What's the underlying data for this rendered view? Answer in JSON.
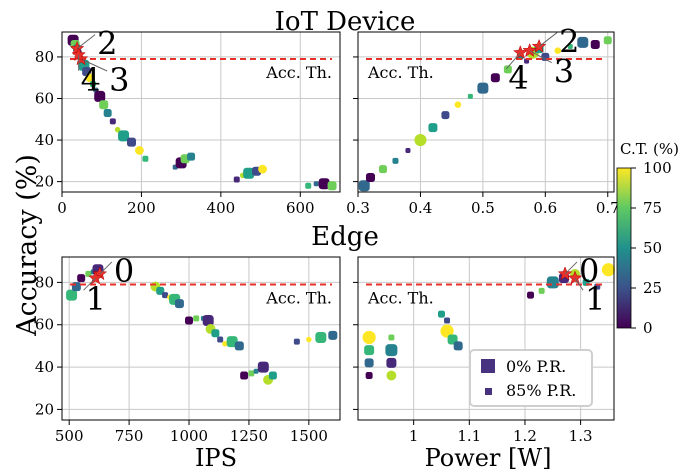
{
  "figure": {
    "shared_ylabel": "Accuracy (%)",
    "threshold_label": "Acc. Th.",
    "threshold_value": 79,
    "colorbar": {
      "label": "C.T. (%)",
      "ticks": [
        0,
        25,
        50,
        75,
        100
      ],
      "range": [
        0,
        100
      ],
      "colormap": "viridis"
    },
    "legend": {
      "items": [
        {
          "label": "0% P.R.",
          "marker": "large-square"
        },
        {
          "label": "85% P.R.",
          "marker": "small-square"
        }
      ]
    },
    "colors": {
      "threshold": "#e8302a",
      "star": "#e8302a",
      "grid": "#c8c8c8",
      "dark": "#440154",
      "bright": "#fde725"
    }
  },
  "chart_data": [
    {
      "type": "scatter",
      "title": "IoT Device",
      "xlabel": "",
      "ylabel": "Accuracy (%)",
      "xlim": [
        0,
        700
      ],
      "ylim": [
        15,
        92
      ],
      "xticks": [
        0,
        200,
        400,
        600
      ],
      "yticks": [
        20,
        40,
        60,
        80
      ],
      "threshold_label_pos": "right",
      "series": [
        {
          "values": [
            [
              28,
              88
            ],
            [
              33,
              86
            ],
            [
              38,
              84
            ],
            [
              42,
              82
            ],
            [
              48,
              79
            ],
            [
              55,
              76
            ],
            [
              62,
              73
            ],
            [
              70,
              70
            ],
            [
              78,
              67
            ],
            [
              85,
              64
            ],
            [
              95,
              61
            ],
            [
              105,
              57
            ],
            [
              115,
              53
            ],
            [
              128,
              49
            ],
            [
              140,
              45
            ],
            [
              155,
              42
            ],
            [
              175,
              39
            ],
            [
              195,
              35
            ],
            [
              210,
              31
            ],
            [
              285,
              27
            ],
            [
              300,
              29
            ],
            [
              310,
              31
            ],
            [
              325,
              32
            ],
            [
              440,
              21
            ],
            [
              455,
              23
            ],
            [
              470,
              24
            ],
            [
              490,
              25
            ],
            [
              505,
              26
            ],
            [
              620,
              18
            ],
            [
              640,
              19
            ],
            [
              660,
              19
            ],
            [
              680,
              18
            ]
          ]
        }
      ],
      "stars": [
        {
          "x": 38,
          "y": 84,
          "label": "2"
        },
        {
          "x": 48,
          "y": 79,
          "label": "3"
        },
        {
          "x": 42,
          "y": 81,
          "label": "4"
        }
      ]
    },
    {
      "type": "scatter",
      "title": "IoT Device",
      "xlabel": "",
      "ylabel": "",
      "xlim": [
        0.3,
        0.71
      ],
      "ylim": [
        15,
        92
      ],
      "xticks": [
        0.3,
        0.4,
        0.5,
        0.6,
        0.7
      ],
      "yticks": [
        20,
        40,
        60,
        80
      ],
      "threshold_label_pos": "left",
      "series": [
        {
          "values": [
            [
              0.31,
              18
            ],
            [
              0.32,
              22
            ],
            [
              0.34,
              26
            ],
            [
              0.36,
              30
            ],
            [
              0.38,
              35
            ],
            [
              0.4,
              40
            ],
            [
              0.42,
              46
            ],
            [
              0.44,
              52
            ],
            [
              0.46,
              57
            ],
            [
              0.48,
              61
            ],
            [
              0.5,
              65
            ],
            [
              0.52,
              70
            ],
            [
              0.54,
              74
            ],
            [
              0.56,
              80
            ],
            [
              0.57,
              78
            ],
            [
              0.58,
              82
            ],
            [
              0.59,
              84
            ],
            [
              0.6,
              80
            ],
            [
              0.62,
              83
            ],
            [
              0.64,
              85
            ],
            [
              0.66,
              87
            ],
            [
              0.68,
              86
            ],
            [
              0.7,
              88
            ]
          ]
        }
      ],
      "stars": [
        {
          "x": 0.56,
          "y": 82,
          "label": "4"
        },
        {
          "x": 0.59,
          "y": 85,
          "label": "2"
        },
        {
          "x": 0.575,
          "y": 83,
          "label": "3"
        }
      ]
    },
    {
      "type": "scatter",
      "title": "Edge",
      "xlabel": "IPS",
      "ylabel": "",
      "xlim": [
        470,
        1630
      ],
      "ylim": [
        15,
        92
      ],
      "xticks": [
        500,
        750,
        1000,
        1250,
        1500
      ],
      "yticks": [
        20,
        40,
        60,
        80
      ],
      "threshold_label_pos": "right",
      "series": [
        {
          "values": [
            [
              510,
              74
            ],
            [
              530,
              78
            ],
            [
              550,
              82
            ],
            [
              580,
              84
            ],
            [
              600,
              85
            ],
            [
              620,
              86
            ],
            [
              860,
              78
            ],
            [
              880,
              76
            ],
            [
              900,
              74
            ],
            [
              920,
              73
            ],
            [
              940,
              72
            ],
            [
              960,
              70
            ],
            [
              1000,
              62
            ],
            [
              1030,
              63
            ],
            [
              1060,
              63
            ],
            [
              1080,
              62
            ],
            [
              1090,
              58
            ],
            [
              1110,
              56
            ],
            [
              1130,
              53
            ],
            [
              1150,
              51
            ],
            [
              1180,
              52
            ],
            [
              1210,
              50
            ],
            [
              1230,
              36
            ],
            [
              1260,
              37
            ],
            [
              1280,
              38
            ],
            [
              1310,
              40
            ],
            [
              1330,
              34
            ],
            [
              1350,
              36
            ],
            [
              1450,
              52
            ],
            [
              1500,
              53
            ],
            [
              1550,
              54
            ],
            [
              1600,
              55
            ]
          ]
        }
      ],
      "stars": [
        {
          "x": 628,
          "y": 84,
          "label": "0"
        },
        {
          "x": 610,
          "y": 82,
          "label": "1"
        }
      ]
    },
    {
      "type": "scatter",
      "title": "Edge",
      "xlabel": "Power [W]",
      "ylabel": "",
      "xlim": [
        0.9,
        1.36
      ],
      "ylim": [
        15,
        92
      ],
      "xticks": [
        1.0,
        1.1,
        1.2,
        1.3
      ],
      "yticks": [
        20,
        40,
        60,
        80
      ],
      "threshold_label_pos": "left",
      "series": [
        {
          "values": [
            [
              0.92,
              54
            ],
            [
              0.92,
              48
            ],
            [
              0.92,
              42
            ],
            [
              0.92,
              36
            ],
            [
              0.96,
              54
            ],
            [
              0.96,
              48
            ],
            [
              0.96,
              42
            ],
            [
              0.96,
              36
            ],
            [
              1.05,
              65
            ],
            [
              1.06,
              62
            ],
            [
              1.06,
              57
            ],
            [
              1.07,
              53
            ],
            [
              1.08,
              50
            ],
            [
              1.21,
              74
            ],
            [
              1.23,
              76
            ],
            [
              1.25,
              80
            ],
            [
              1.27,
              82
            ],
            [
              1.29,
              84
            ],
            [
              1.31,
              80
            ],
            [
              1.33,
              78
            ],
            [
              1.35,
              86
            ]
          ]
        }
      ],
      "stars": [
        {
          "x": 1.272,
          "y": 84,
          "label": "0"
        },
        {
          "x": 1.29,
          "y": 82,
          "label": "1"
        }
      ]
    }
  ]
}
